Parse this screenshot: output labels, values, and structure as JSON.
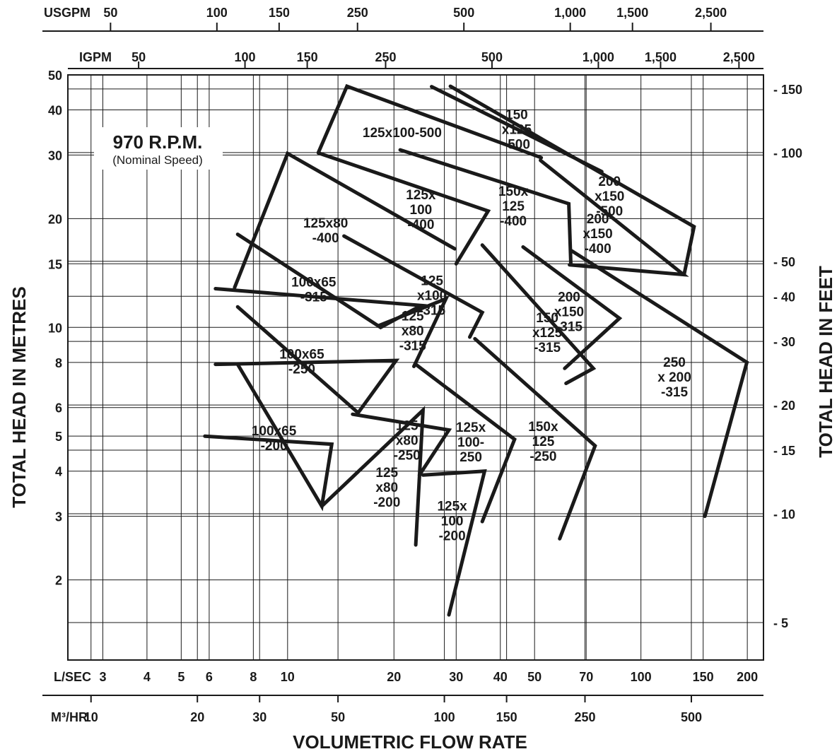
{
  "chart_data": {
    "type": "line",
    "title": "970 R.P.M.",
    "subtitle": "(Nominal Speed)",
    "xlabel": "VOLUMETRIC FLOW RATE",
    "ylabel_left": "TOTAL HEAD IN METRES",
    "ylabel_right": "TOTAL HEAD IN FEET",
    "x_scale": "log",
    "y_scale": "log",
    "xlim_m3hr": [
      8.6,
      800
    ],
    "ylim_m": [
      1.2,
      50
    ],
    "grid": true,
    "axes": {
      "usgpm": {
        "unit_label": "USGPM",
        "ticks": [
          "50",
          "100",
          "150",
          "250",
          "500",
          "1,000",
          "1,500",
          "2,500"
        ]
      },
      "igpm": {
        "unit_label": "IGPM",
        "ticks": [
          "50",
          "100",
          "150",
          "250",
          "500",
          "1,000",
          "1,500",
          "2,500"
        ]
      },
      "lsec": {
        "unit_label": "L/SEC",
        "ticks": [
          "3",
          "4",
          "5",
          "6",
          "8",
          "10",
          "20",
          "30",
          "40",
          "50",
          "70",
          "100",
          "150",
          "200"
        ]
      },
      "m3hr": {
        "unit_label": "M³/HR",
        "ticks": [
          "10",
          "20",
          "30",
          "50",
          "100",
          "150",
          "250",
          "500"
        ]
      },
      "metres": {
        "ticks": [
          "2",
          "3",
          "4",
          "5",
          "6",
          "8",
          "10",
          "15",
          "20",
          "30",
          "40",
          "50"
        ]
      },
      "feet": {
        "ticks": [
          "- 5",
          "- 10",
          "- 15",
          "- 20",
          "- 30",
          "- 40",
          "- 50",
          "- 100",
          "- 150"
        ]
      }
    },
    "series": [
      {
        "name": "100x65-200",
        "label_lines": [
          "100x65",
          "-200"
        ],
        "points": [
          [
            21,
            5.0
          ],
          [
            48,
            4.75
          ],
          [
            45,
            3.2
          ],
          [
            26,
            7.9
          ]
        ]
      },
      {
        "name": "100x65-250",
        "label_lines": [
          "100x65",
          "-250"
        ],
        "points": [
          [
            22.5,
            7.9
          ],
          [
            73,
            8.1
          ],
          [
            57,
            5.8
          ],
          [
            26,
            11.4
          ]
        ]
      },
      {
        "name": "100x65-315",
        "label_lines": [
          "100x65",
          "-315"
        ],
        "points": [
          [
            22.5,
            12.8
          ],
          [
            86,
            11.5
          ],
          [
            66,
            10.0
          ],
          [
            26,
            18.1
          ]
        ]
      },
      {
        "name": "125x80-200",
        "label_lines": [
          "125",
          "x80",
          "-200"
        ],
        "points": [
          [
            45,
            3.2
          ],
          [
            87,
            5.9
          ],
          [
            83,
            2.5
          ]
        ]
      },
      {
        "name": "125x80-250",
        "label_lines": [
          "125",
          "x80",
          "-250"
        ],
        "points": [
          [
            55,
            5.75
          ],
          [
            103,
            5.2
          ],
          [
            85,
            3.9
          ]
        ]
      },
      {
        "name": "125x80-315",
        "label_lines": [
          "125",
          "x80",
          "-315"
        ],
        "points": [
          [
            65,
            10.1
          ],
          [
            101,
            12.0
          ],
          [
            82,
            7.8
          ]
        ]
      },
      {
        "name": "125x80-400",
        "label_lines": [
          "125x80",
          "-400"
        ],
        "points": [
          [
            25.5,
            12.9
          ],
          [
            36,
            30.3
          ],
          [
            107,
            16.5
          ]
        ]
      },
      {
        "name": "125x100-200",
        "label_lines": [
          "125x",
          "100",
          "-200"
        ],
        "points": [
          [
            87,
            3.9
          ],
          [
            130,
            4.0
          ],
          [
            103,
            1.6
          ]
        ]
      },
      {
        "name": "125x100-250",
        "label_lines": [
          "125x",
          "100-",
          "250"
        ],
        "points": [
          [
            83,
            7.9
          ],
          [
            158,
            4.9
          ],
          [
            128,
            2.9
          ]
        ]
      },
      {
        "name": "125x100-315",
        "label_lines": [
          "125",
          "x100",
          "-315"
        ],
        "points": [
          [
            52,
            17.9
          ],
          [
            128,
            11.0
          ],
          [
            118,
            9.4
          ]
        ]
      },
      {
        "name": "125x100-400",
        "label_lines": [
          "125x",
          "100",
          "-400"
        ],
        "points": [
          [
            44,
            30.4
          ],
          [
            133,
            21.0
          ],
          [
            108,
            15.0
          ]
        ]
      },
      {
        "name": "125x100-500",
        "label_lines": [
          "125x100-500"
        ],
        "points": [
          [
            44,
            30.5
          ],
          [
            53,
            46.5
          ],
          [
            188,
            29.5
          ]
        ]
      },
      {
        "name": "150x125-250",
        "label_lines": [
          "150x",
          "125",
          "-250"
        ],
        "points": [
          [
            122,
            9.3
          ],
          [
            267,
            4.7
          ],
          [
            212,
            2.6
          ]
        ]
      },
      {
        "name": "150x125-315",
        "label_lines": [
          "150",
          "x125",
          "-315"
        ],
        "points": [
          [
            128,
            16.9
          ],
          [
            264,
            7.7
          ],
          [
            221,
            7.0
          ]
        ]
      },
      {
        "name": "150x125-400",
        "label_lines": [
          "150x",
          "125",
          "-400"
        ],
        "points": [
          [
            75,
            31.0
          ],
          [
            225,
            22.0
          ],
          [
            228,
            15.0
          ]
        ]
      },
      {
        "name": "150x125-500",
        "label_lines": [
          "150",
          "x125",
          "-500"
        ],
        "points": [
          [
            92,
            46.4
          ],
          [
            279,
            27.0
          ]
        ]
      },
      {
        "name": "200x150-315",
        "label_lines": [
          "200",
          "x150",
          "-315"
        ],
        "points": [
          [
            167,
            16.7
          ],
          [
            313,
            10.6
          ],
          [
            219,
            7.7
          ]
        ]
      },
      {
        "name": "200x150-400",
        "label_lines": [
          "200",
          "x150",
          "-400"
        ],
        "points": [
          [
            226,
            14.9
          ],
          [
            475,
            14.0
          ],
          [
            187,
            29.0
          ]
        ]
      },
      {
        "name": "200x150-500",
        "label_lines": [
          "200",
          "x150",
          "-500"
        ],
        "points": [
          [
            104,
            46.5
          ],
          [
            509,
            19.0
          ],
          [
            477,
            14.0
          ]
        ]
      },
      {
        "name": "250x200-315",
        "label_lines": [
          "250",
          "x 200",
          "-315"
        ],
        "points": [
          [
            229,
            16.3
          ],
          [
            718,
            8.0
          ],
          [
            546,
            3.0
          ]
        ]
      }
    ]
  }
}
